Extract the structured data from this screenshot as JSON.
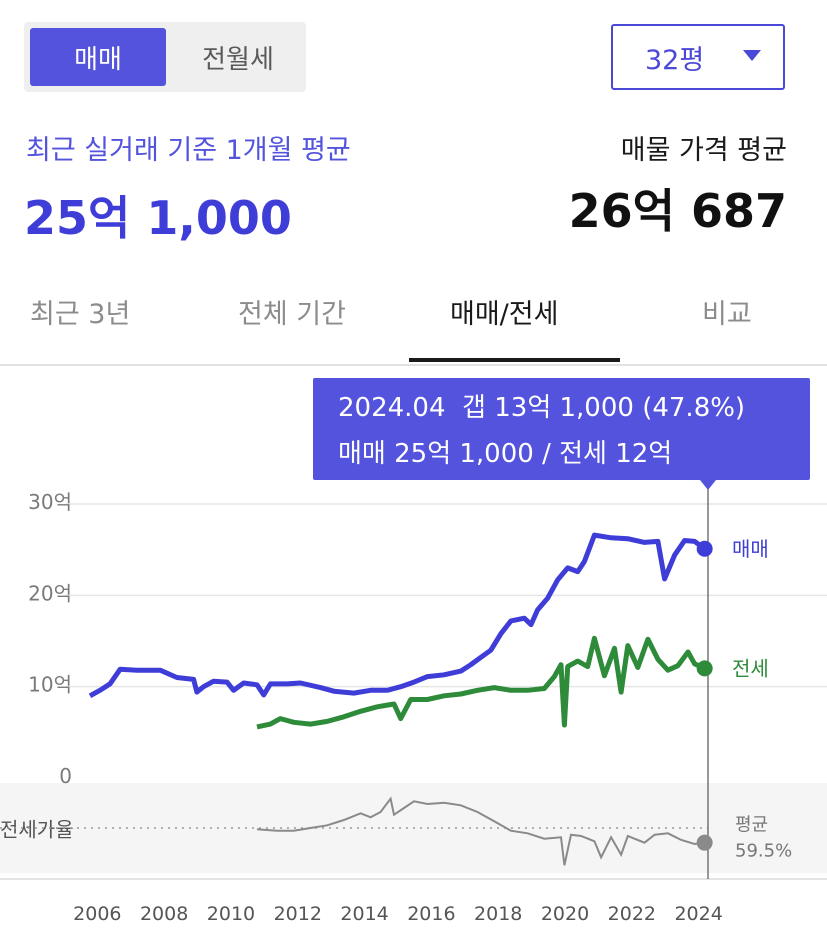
{
  "toggle": {
    "sale": "매매",
    "rent": "전월세"
  },
  "size_select": {
    "value": "32평"
  },
  "summary": {
    "recent_label": "최근 실거래 기준 1개월 평균",
    "recent_price": "25억 1,000",
    "ask_label": "매물 가격 평균",
    "ask_price": "26억 687"
  },
  "tabs": [
    "최근 3년",
    "전체 기간",
    "매매/전세",
    "비교"
  ],
  "active_tab": 2,
  "tooltip": {
    "line1": "2024.04  갭 13억 1,000 (47.8%)",
    "line2": "매매 25억 1,000 / 전세 12억"
  },
  "colors": {
    "sale": "#3f3dd8",
    "jeonse": "#2e8b3a",
    "ratio": "#8a8a8a",
    "accent": "#5353dd"
  },
  "chart_data": {
    "type": "line",
    "x_unit": "year",
    "xlim": [
      2005.9,
      2024.4
    ],
    "x_ticks": [
      "2006",
      "2008",
      "2010",
      "2012",
      "2014",
      "2016",
      "2018",
      "2020",
      "2022",
      "2024"
    ],
    "y_unit": "억",
    "ylim": [
      0,
      30
    ],
    "y_ticks": [
      "30억",
      "20억",
      "10억",
      "0"
    ],
    "grid": true,
    "series": [
      {
        "name": "매매",
        "end_label": "매매",
        "points": [
          [
            2005.9,
            9.0
          ],
          [
            2006.2,
            9.6
          ],
          [
            2006.5,
            10.3
          ],
          [
            2006.8,
            11.9
          ],
          [
            2007.3,
            11.8
          ],
          [
            2008.0,
            11.8
          ],
          [
            2008.5,
            11.0
          ],
          [
            2009.0,
            10.8
          ],
          [
            2009.1,
            9.4
          ],
          [
            2009.3,
            10.0
          ],
          [
            2009.6,
            10.6
          ],
          [
            2010.0,
            10.5
          ],
          [
            2010.2,
            9.6
          ],
          [
            2010.5,
            10.4
          ],
          [
            2010.9,
            10.2
          ],
          [
            2011.1,
            9.1
          ],
          [
            2011.3,
            10.3
          ],
          [
            2011.8,
            10.3
          ],
          [
            2012.2,
            10.4
          ],
          [
            2012.8,
            9.9
          ],
          [
            2013.2,
            9.5
          ],
          [
            2013.8,
            9.3
          ],
          [
            2014.3,
            9.6
          ],
          [
            2014.8,
            9.6
          ],
          [
            2015.2,
            10.0
          ],
          [
            2015.6,
            10.5
          ],
          [
            2016.0,
            11.1
          ],
          [
            2016.5,
            11.3
          ],
          [
            2017.0,
            11.7
          ],
          [
            2017.3,
            12.4
          ],
          [
            2017.6,
            13.2
          ],
          [
            2017.9,
            14.0
          ],
          [
            2018.2,
            15.8
          ],
          [
            2018.5,
            17.2
          ],
          [
            2018.9,
            17.5
          ],
          [
            2019.1,
            16.8
          ],
          [
            2019.3,
            18.4
          ],
          [
            2019.6,
            19.7
          ],
          [
            2019.9,
            21.7
          ],
          [
            2020.2,
            23.0
          ],
          [
            2020.5,
            22.6
          ],
          [
            2020.7,
            23.7
          ],
          [
            2021.0,
            26.6
          ],
          [
            2021.5,
            26.3
          ],
          [
            2022.0,
            26.2
          ],
          [
            2022.5,
            25.8
          ],
          [
            2022.9,
            25.9
          ],
          [
            2023.1,
            21.8
          ],
          [
            2023.4,
            24.4
          ],
          [
            2023.7,
            26.0
          ],
          [
            2024.0,
            25.9
          ],
          [
            2024.3,
            25.1
          ]
        ]
      },
      {
        "name": "전세",
        "end_label": "전세",
        "points": [
          [
            2010.9,
            5.6
          ],
          [
            2011.3,
            5.9
          ],
          [
            2011.6,
            6.5
          ],
          [
            2012.0,
            6.1
          ],
          [
            2012.5,
            5.9
          ],
          [
            2013.0,
            6.2
          ],
          [
            2013.5,
            6.7
          ],
          [
            2014.0,
            7.3
          ],
          [
            2014.5,
            7.8
          ],
          [
            2015.0,
            8.1
          ],
          [
            2015.2,
            6.5
          ],
          [
            2015.5,
            8.6
          ],
          [
            2016.0,
            8.6
          ],
          [
            2016.5,
            9.0
          ],
          [
            2017.0,
            9.2
          ],
          [
            2017.5,
            9.6
          ],
          [
            2018.0,
            9.9
          ],
          [
            2018.5,
            9.6
          ],
          [
            2019.0,
            9.6
          ],
          [
            2019.5,
            9.8
          ],
          [
            2019.8,
            11.1
          ],
          [
            2020.0,
            12.4
          ],
          [
            2020.1,
            5.8
          ],
          [
            2020.2,
            12.2
          ],
          [
            2020.5,
            12.8
          ],
          [
            2020.8,
            12.2
          ],
          [
            2021.0,
            15.3
          ],
          [
            2021.3,
            11.2
          ],
          [
            2021.6,
            14.2
          ],
          [
            2021.8,
            9.4
          ],
          [
            2022.0,
            14.5
          ],
          [
            2022.3,
            12.1
          ],
          [
            2022.6,
            15.2
          ],
          [
            2022.9,
            13.0
          ],
          [
            2023.2,
            11.8
          ],
          [
            2023.5,
            12.3
          ],
          [
            2023.8,
            13.8
          ],
          [
            2024.0,
            12.5
          ],
          [
            2024.3,
            12.0
          ]
        ]
      },
      {
        "name": "전세가율",
        "end_label": "평균",
        "end_value": "59.5%",
        "baseline_label": "전세가율",
        "ylim": [
          30,
          90
        ],
        "points": [
          [
            2010.9,
            59
          ],
          [
            2011.5,
            58
          ],
          [
            2012.0,
            58
          ],
          [
            2012.5,
            60
          ],
          [
            2013.0,
            62
          ],
          [
            2013.5,
            66
          ],
          [
            2014.0,
            71
          ],
          [
            2014.3,
            68
          ],
          [
            2014.6,
            72
          ],
          [
            2014.9,
            82
          ],
          [
            2015.0,
            70
          ],
          [
            2015.3,
            75
          ],
          [
            2015.6,
            80
          ],
          [
            2016.0,
            78
          ],
          [
            2016.5,
            79
          ],
          [
            2017.0,
            77
          ],
          [
            2017.5,
            72
          ],
          [
            2018.0,
            65
          ],
          [
            2018.5,
            58
          ],
          [
            2019.0,
            56
          ],
          [
            2019.5,
            52
          ],
          [
            2020.0,
            53
          ],
          [
            2020.1,
            32
          ],
          [
            2020.3,
            55
          ],
          [
            2020.6,
            54
          ],
          [
            2021.0,
            50
          ],
          [
            2021.2,
            38
          ],
          [
            2021.5,
            53
          ],
          [
            2021.8,
            40
          ],
          [
            2022.0,
            54
          ],
          [
            2022.5,
            49
          ],
          [
            2022.8,
            55
          ],
          [
            2023.2,
            56
          ],
          [
            2023.6,
            51
          ],
          [
            2024.0,
            48
          ],
          [
            2024.3,
            49
          ]
        ]
      }
    ],
    "selected_x": 2024.3
  }
}
